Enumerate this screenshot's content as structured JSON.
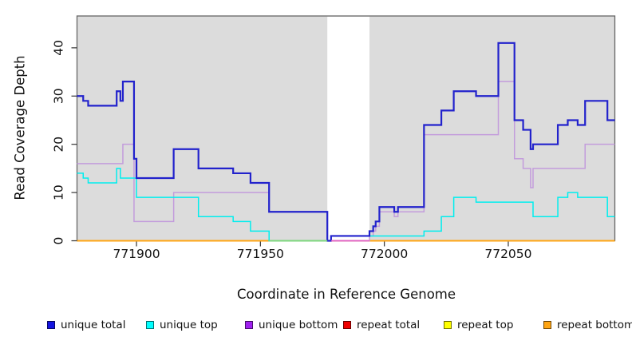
{
  "chart_data": {
    "type": "line",
    "subtype": "step-coverage-plot",
    "title": "",
    "xlabel": "Coordinate in Reference Genome",
    "ylabel": "Read Coverage Depth",
    "xlim": [
      771876,
      772093
    ],
    "ylim": [
      0,
      46.6
    ],
    "x_ticks": [
      771900,
      771950,
      772000,
      772050
    ],
    "y_ticks": [
      0,
      10,
      20,
      30,
      40
    ],
    "grid": false,
    "plot_bg": "#dcdcdc",
    "border_color": "#666666",
    "tick_color": "#333333",
    "gap_region": {
      "x1": 771977,
      "x2": 771994,
      "color": "#ffffff"
    },
    "series": [
      {
        "name": "repeat top",
        "color": "#ffff00",
        "line_width": 1.2,
        "points": [
          [
            771876,
            0
          ],
          [
            772093,
            0
          ]
        ]
      },
      {
        "name": "repeat total",
        "color": "#ee0000",
        "line_width": 1.2,
        "points": [
          [
            771876,
            0
          ],
          [
            772093,
            0
          ]
        ]
      },
      {
        "name": "repeat bottom",
        "color": "#ffa513",
        "line_width": 2,
        "points": [
          [
            771876,
            0
          ],
          [
            772093,
            0
          ]
        ]
      },
      {
        "name": "unique bottom",
        "color": "#c39cdc",
        "line_width": 1.5,
        "points": [
          [
            771876,
            16
          ],
          [
            771894.5,
            20
          ],
          [
            771899,
            4
          ],
          [
            771915,
            10
          ],
          [
            771953.5,
            6
          ],
          [
            771977,
            0
          ],
          [
            771994,
            1
          ],
          [
            771995.5,
            2
          ],
          [
            771996.5,
            3
          ],
          [
            771998,
            6
          ],
          [
            772004,
            5
          ],
          [
            772005.5,
            6
          ],
          [
            772016,
            22
          ],
          [
            772046,
            33
          ],
          [
            772052.5,
            17
          ],
          [
            772056,
            15
          ],
          [
            772059,
            11
          ],
          [
            772060,
            15
          ],
          [
            772081,
            20
          ],
          [
            772093,
            20
          ]
        ]
      },
      {
        "name": "unique top",
        "color": "#00eeee",
        "line_width": 1.5,
        "points": [
          [
            771876,
            14
          ],
          [
            771878.5,
            13
          ],
          [
            771880.5,
            12
          ],
          [
            771892,
            15
          ],
          [
            771893.5,
            13
          ],
          [
            771900,
            9
          ],
          [
            771925,
            5
          ],
          [
            771939,
            4
          ],
          [
            771946,
            2
          ],
          [
            771953.5,
            0
          ],
          [
            771978.5,
            1
          ],
          [
            772016,
            2
          ],
          [
            772023,
            5
          ],
          [
            772028,
            9
          ],
          [
            772037,
            8
          ],
          [
            772060,
            5
          ],
          [
            772070,
            9
          ],
          [
            772074,
            10
          ],
          [
            772078,
            9
          ],
          [
            772090,
            5
          ],
          [
            772093,
            5
          ]
        ]
      },
      {
        "name": "unique total",
        "color": "#2222cc",
        "line_width": 2.2,
        "points": [
          [
            771876,
            30
          ],
          [
            771878.5,
            29
          ],
          [
            771880.5,
            28
          ],
          [
            771892,
            31
          ],
          [
            771893.5,
            29
          ],
          [
            771894.5,
            33
          ],
          [
            771899,
            17
          ],
          [
            771900,
            13
          ],
          [
            771915,
            19
          ],
          [
            771925,
            15
          ],
          [
            771939,
            14
          ],
          [
            771946,
            12
          ],
          [
            771953.5,
            6
          ],
          [
            771977,
            0
          ],
          [
            771978.5,
            1
          ],
          [
            771994,
            2
          ],
          [
            771995.5,
            3
          ],
          [
            771996.5,
            4
          ],
          [
            771998,
            7
          ],
          [
            772004,
            6
          ],
          [
            772005.5,
            7
          ],
          [
            772016,
            24
          ],
          [
            772023,
            27
          ],
          [
            772028,
            31
          ],
          [
            772037,
            30
          ],
          [
            772046,
            41
          ],
          [
            772052.5,
            25
          ],
          [
            772056,
            23
          ],
          [
            772059,
            19
          ],
          [
            772060,
            20
          ],
          [
            772070,
            24
          ],
          [
            772074,
            25
          ],
          [
            772078,
            24
          ],
          [
            772081,
            29
          ],
          [
            772090,
            25
          ],
          [
            772093,
            25
          ]
        ]
      }
    ],
    "baseline_overlaps": [
      {
        "x1": 771953.5,
        "x2": 771977,
        "value": 0,
        "color": "#7dd87d",
        "note": "unique-top at zero blended over repeat lines"
      },
      {
        "x1": 771978.5,
        "x2": 771994,
        "value": 0,
        "color": "#e05fc8",
        "note": "unique-bottom at zero blended over repeat lines"
      }
    ],
    "legend_position": "bottom",
    "legend_x_positions": [
      59,
      183,
      307,
      430,
      556,
      681
    ]
  },
  "legend": {
    "items": [
      {
        "label": "unique total",
        "color": "#1414e0"
      },
      {
        "label": "unique top",
        "color": "#00ffff"
      },
      {
        "label": "unique bottom",
        "color": "#a020f0"
      },
      {
        "label": "repeat total",
        "color": "#ee0000"
      },
      {
        "label": "repeat top",
        "color": "#ffff00"
      },
      {
        "label": "repeat bottom",
        "color": "#ffa513"
      }
    ]
  }
}
